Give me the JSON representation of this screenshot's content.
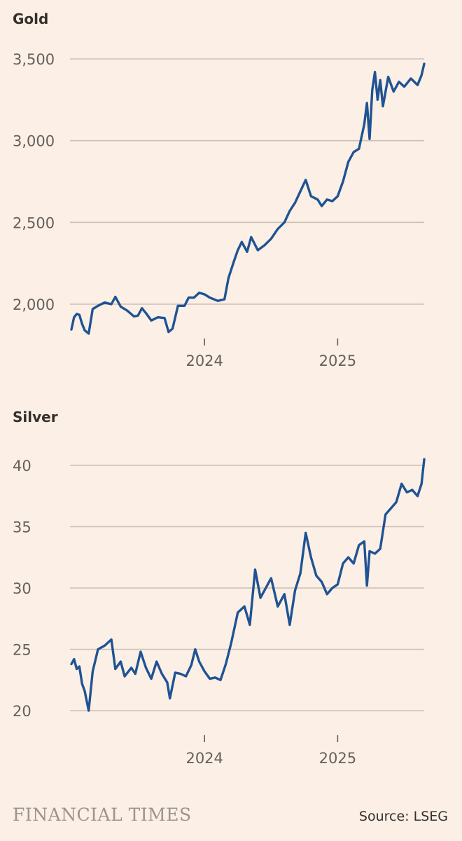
{
  "chart_data": [
    {
      "type": "line",
      "title": "Gold",
      "xlabel": "",
      "ylabel": "",
      "ylim": [
        1780,
        3480
      ],
      "yticks": [
        2000,
        2500,
        3000,
        3500
      ],
      "ytick_labels": [
        "2,000",
        "2,500",
        "3,000",
        "3,500"
      ],
      "xlim": [
        2023.0,
        2025.65
      ],
      "xticks": [
        2024,
        2025
      ],
      "xtick_labels": [
        "2024",
        "2025"
      ],
      "grid": true,
      "series": [
        {
          "name": "Gold",
          "color": "#1f5393",
          "points": [
            [
              2023.0,
              1845
            ],
            [
              2023.02,
              1920
            ],
            [
              2023.04,
              1940
            ],
            [
              2023.06,
              1935
            ],
            [
              2023.08,
              1880
            ],
            [
              2023.1,
              1840
            ],
            [
              2023.13,
              1820
            ],
            [
              2023.16,
              1970
            ],
            [
              2023.2,
              1990
            ],
            [
              2023.25,
              2010
            ],
            [
              2023.3,
              2000
            ],
            [
              2023.33,
              2045
            ],
            [
              2023.37,
              1985
            ],
            [
              2023.42,
              1960
            ],
            [
              2023.47,
              1925
            ],
            [
              2023.5,
              1930
            ],
            [
              2023.53,
              1975
            ],
            [
              2023.56,
              1945
            ],
            [
              2023.6,
              1900
            ],
            [
              2023.65,
              1920
            ],
            [
              2023.7,
              1915
            ],
            [
              2023.73,
              1830
            ],
            [
              2023.76,
              1850
            ],
            [
              2023.8,
              1990
            ],
            [
              2023.85,
              1990
            ],
            [
              2023.88,
              2040
            ],
            [
              2023.92,
              2040
            ],
            [
              2023.96,
              2070
            ],
            [
              2024.0,
              2060
            ],
            [
              2024.04,
              2040
            ],
            [
              2024.1,
              2020
            ],
            [
              2024.15,
              2030
            ],
            [
              2024.18,
              2160
            ],
            [
              2024.22,
              2260
            ],
            [
              2024.25,
              2330
            ],
            [
              2024.28,
              2380
            ],
            [
              2024.32,
              2320
            ],
            [
              2024.35,
              2410
            ],
            [
              2024.4,
              2330
            ],
            [
              2024.45,
              2360
            ],
            [
              2024.5,
              2400
            ],
            [
              2024.55,
              2460
            ],
            [
              2024.6,
              2500
            ],
            [
              2024.64,
              2570
            ],
            [
              2024.68,
              2620
            ],
            [
              2024.72,
              2690
            ],
            [
              2024.76,
              2760
            ],
            [
              2024.8,
              2660
            ],
            [
              2024.85,
              2640
            ],
            [
              2024.88,
              2600
            ],
            [
              2024.92,
              2640
            ],
            [
              2024.96,
              2630
            ],
            [
              2025.0,
              2660
            ],
            [
              2025.04,
              2750
            ],
            [
              2025.08,
              2870
            ],
            [
              2025.12,
              2930
            ],
            [
              2025.16,
              2950
            ],
            [
              2025.2,
              3100
            ],
            [
              2025.22,
              3230
            ],
            [
              2025.24,
              3010
            ],
            [
              2025.26,
              3310
            ],
            [
              2025.28,
              3420
            ],
            [
              2025.3,
              3250
            ],
            [
              2025.32,
              3370
            ],
            [
              2025.34,
              3210
            ],
            [
              2025.38,
              3390
            ],
            [
              2025.42,
              3300
            ],
            [
              2025.46,
              3360
            ],
            [
              2025.5,
              3330
            ],
            [
              2025.55,
              3380
            ],
            [
              2025.6,
              3340
            ],
            [
              2025.63,
              3400
            ],
            [
              2025.65,
              3470
            ]
          ]
        }
      ]
    },
    {
      "type": "line",
      "title": "Silver",
      "xlabel": "",
      "ylabel": "",
      "ylim": [
        19.8,
        40.6
      ],
      "yticks": [
        20,
        25,
        30,
        35,
        40
      ],
      "ytick_labels": [
        "20",
        "25",
        "30",
        "35",
        "40"
      ],
      "xlim": [
        2023.0,
        2025.65
      ],
      "xticks": [
        2024,
        2025
      ],
      "xtick_labels": [
        "2024",
        "2025"
      ],
      "grid": true,
      "series": [
        {
          "name": "Silver",
          "color": "#1f5393",
          "points": [
            [
              2023.0,
              23.8
            ],
            [
              2023.02,
              24.2
            ],
            [
              2023.04,
              23.4
            ],
            [
              2023.06,
              23.6
            ],
            [
              2023.08,
              22.2
            ],
            [
              2023.1,
              21.6
            ],
            [
              2023.13,
              20.0
            ],
            [
              2023.16,
              23.2
            ],
            [
              2023.2,
              25.0
            ],
            [
              2023.25,
              25.3
            ],
            [
              2023.3,
              25.8
            ],
            [
              2023.33,
              23.4
            ],
            [
              2023.37,
              24.0
            ],
            [
              2023.4,
              22.8
            ],
            [
              2023.45,
              23.5
            ],
            [
              2023.48,
              23.0
            ],
            [
              2023.52,
              24.8
            ],
            [
              2023.56,
              23.5
            ],
            [
              2023.6,
              22.6
            ],
            [
              2023.64,
              24.0
            ],
            [
              2023.68,
              23.0
            ],
            [
              2023.72,
              22.3
            ],
            [
              2023.74,
              21.0
            ],
            [
              2023.78,
              23.1
            ],
            [
              2023.82,
              23.0
            ],
            [
              2023.86,
              22.8
            ],
            [
              2023.9,
              23.7
            ],
            [
              2023.93,
              25.0
            ],
            [
              2023.96,
              24.0
            ],
            [
              2024.0,
              23.2
            ],
            [
              2024.04,
              22.6
            ],
            [
              2024.08,
              22.7
            ],
            [
              2024.12,
              22.5
            ],
            [
              2024.16,
              23.8
            ],
            [
              2024.2,
              25.5
            ],
            [
              2024.25,
              28.0
            ],
            [
              2024.3,
              28.5
            ],
            [
              2024.34,
              27.0
            ],
            [
              2024.38,
              31.5
            ],
            [
              2024.42,
              29.2
            ],
            [
              2024.46,
              30.0
            ],
            [
              2024.5,
              30.8
            ],
            [
              2024.55,
              28.5
            ],
            [
              2024.6,
              29.5
            ],
            [
              2024.64,
              27.0
            ],
            [
              2024.68,
              29.8
            ],
            [
              2024.72,
              31.2
            ],
            [
              2024.76,
              34.5
            ],
            [
              2024.8,
              32.5
            ],
            [
              2024.84,
              31.0
            ],
            [
              2024.88,
              30.5
            ],
            [
              2024.92,
              29.5
            ],
            [
              2024.96,
              30.0
            ],
            [
              2025.0,
              30.3
            ],
            [
              2025.04,
              32.0
            ],
            [
              2025.08,
              32.5
            ],
            [
              2025.12,
              32.0
            ],
            [
              2025.16,
              33.5
            ],
            [
              2025.2,
              33.8
            ],
            [
              2025.22,
              30.2
            ],
            [
              2025.24,
              33.0
            ],
            [
              2025.28,
              32.8
            ],
            [
              2025.32,
              33.2
            ],
            [
              2025.36,
              36.0
            ],
            [
              2025.4,
              36.5
            ],
            [
              2025.44,
              37.0
            ],
            [
              2025.48,
              38.5
            ],
            [
              2025.52,
              37.8
            ],
            [
              2025.56,
              38.0
            ],
            [
              2025.6,
              37.5
            ],
            [
              2025.63,
              38.5
            ],
            [
              2025.65,
              40.5
            ]
          ]
        }
      ]
    }
  ],
  "footer": {
    "brand": "FINANCIAL TIMES",
    "source": "Source: LSEG"
  }
}
